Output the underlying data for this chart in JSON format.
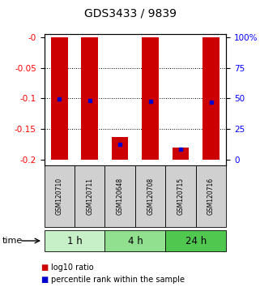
{
  "title": "GDS3433 / 9839",
  "samples": [
    "GSM120710",
    "GSM120711",
    "GSM120648",
    "GSM120708",
    "GSM120715",
    "GSM120716"
  ],
  "groups": [
    {
      "label": "1 h",
      "color": "#c8f0c8",
      "start": 0,
      "end": 2
    },
    {
      "label": "4 h",
      "color": "#90e090",
      "start": 2,
      "end": 4
    },
    {
      "label": "24 h",
      "color": "#50c850",
      "start": 4,
      "end": 6
    }
  ],
  "log10_bar_top": [
    0.0,
    0.0,
    -0.162,
    0.0,
    -0.18,
    0.0
  ],
  "log10_bar_bottom": [
    -0.2,
    -0.2,
    -0.2,
    -0.2,
    -0.2,
    -0.2
  ],
  "percentile_as_log10": [
    -0.101,
    -0.103,
    -0.175,
    -0.105,
    -0.182,
    -0.106
  ],
  "bar_color": "#cc0000",
  "percentile_color": "#0000cc",
  "yticks_left": [
    0.0,
    -0.05,
    -0.1,
    -0.15,
    -0.2
  ],
  "yticklabels_left": [
    "-0",
    "-0.05",
    "-0.1",
    "-0.15",
    "-0.2"
  ],
  "yticklabels_right": [
    "100%",
    "75",
    "50",
    "25",
    "0"
  ],
  "ylim": [
    -0.208,
    0.004
  ],
  "bar_width": 0.55,
  "legend_red": "log10 ratio",
  "legend_blue": "percentile rank within the sample",
  "time_label": "time",
  "sample_box_color": "#d0d0d0",
  "group_box_border": "#000000"
}
